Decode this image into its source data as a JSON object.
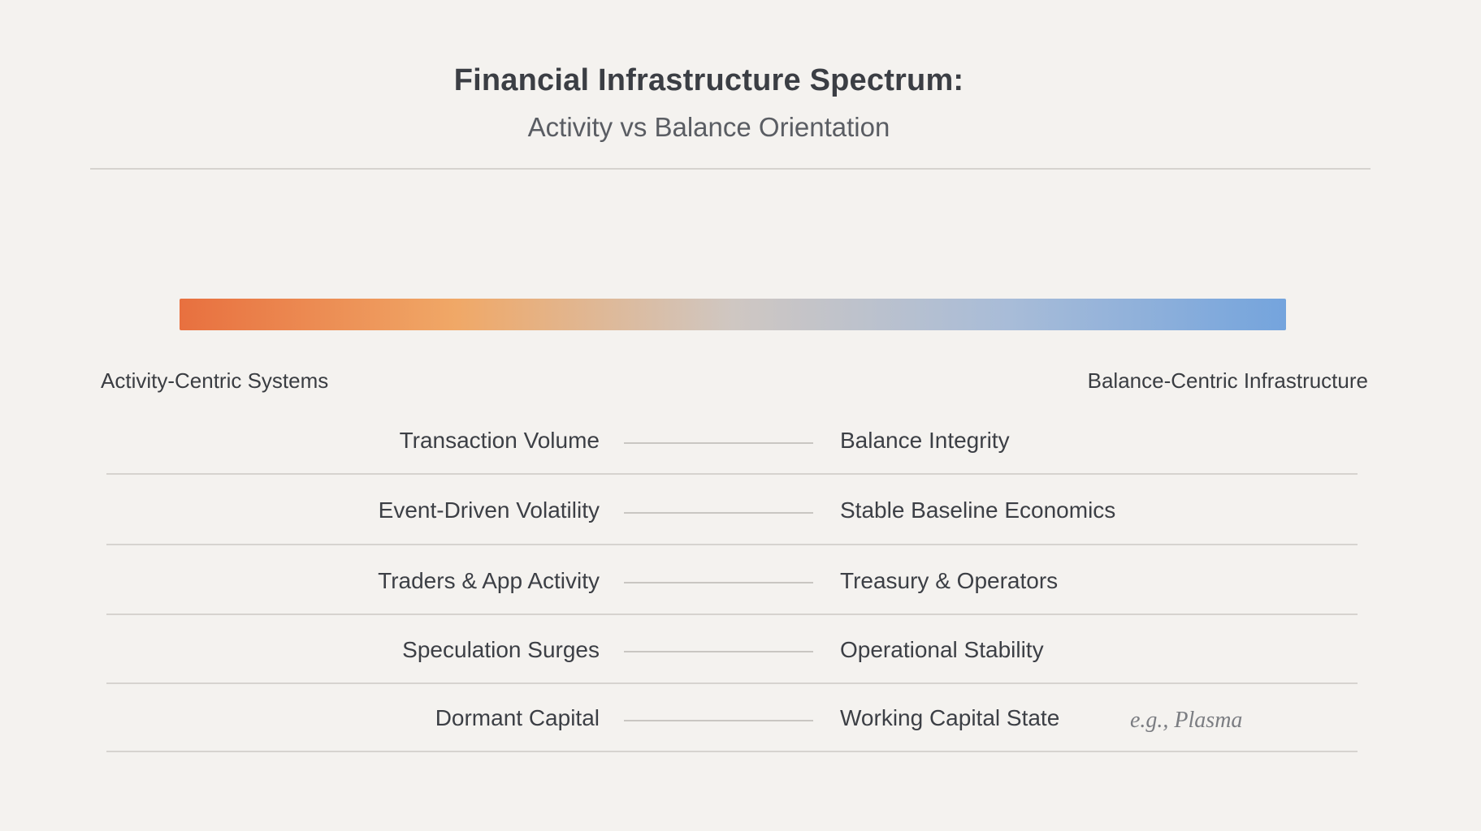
{
  "header": {
    "title": "Financial Infrastructure Spectrum:",
    "subtitle": "Activity vs Balance Orientation"
  },
  "spectrum": {
    "left_label": "Activity-Centric Systems",
    "right_label": "Balance-Centric Infrastructure",
    "gradient_colors": [
      "#e8703f",
      "#f0a867",
      "#cfc7c2",
      "#a8bcd8",
      "#74a4dd"
    ]
  },
  "rows": [
    {
      "left": "Transaction Volume",
      "right": "Balance Integrity",
      "note": ""
    },
    {
      "left": "Event-Driven Volatility",
      "right": "Stable Baseline Economics",
      "note": ""
    },
    {
      "left": "Traders & App Activity",
      "right": "Treasury & Operators",
      "note": ""
    },
    {
      "left": "Speculation Surges",
      "right": "Operational Stability",
      "note": ""
    },
    {
      "left": "Dormant Capital",
      "right": "Working Capital State",
      "note": "e.g., Plasma"
    }
  ]
}
